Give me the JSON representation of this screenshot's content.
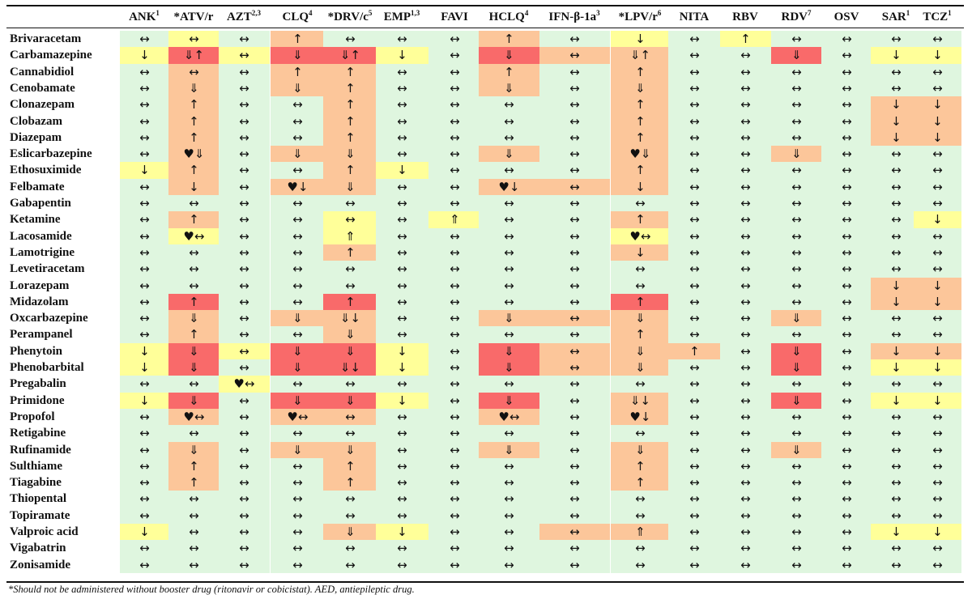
{
  "chart_data": {
    "type": "table",
    "columns": [
      {
        "label": "ANK",
        "sup": "1"
      },
      {
        "label": "*ATV/r",
        "sup": ""
      },
      {
        "label": "AZT",
        "sup": "2,3"
      },
      {
        "label": "CLQ",
        "sup": "4"
      },
      {
        "label": "*DRV/c",
        "sup": "5"
      },
      {
        "label": "EMP",
        "sup": "1,3"
      },
      {
        "label": "FAVI",
        "sup": ""
      },
      {
        "label": "HCLQ",
        "sup": "4"
      },
      {
        "label": "IFN-β-1a",
        "sup": "3"
      },
      {
        "label": "*LPV/r",
        "sup": "6"
      },
      {
        "label": "NITA",
        "sup": ""
      },
      {
        "label": "RBV",
        "sup": ""
      },
      {
        "label": "RDV",
        "sup": "7"
      },
      {
        "label": "OSV",
        "sup": ""
      },
      {
        "label": "SAR",
        "sup": "1"
      },
      {
        "label": "TCZ",
        "sup": "1"
      }
    ],
    "legend_colors": {
      "G": "#dff6df",
      "Y": "#ffff99",
      "O": "#fcc69a",
      "R": "#f96a6a"
    },
    "rows": [
      {
        "drug": "Brivaracetam",
        "values": [
          "↔",
          "↔",
          "↔",
          "↑",
          "↔",
          "↔",
          "↔",
          "↑",
          "↔",
          "↓",
          "↔",
          "↑",
          "↔",
          "↔",
          "↔",
          "↔"
        ],
        "colors": "GYGOGGGOGYGYGGGG"
      },
      {
        "drug": "Carbamazepine",
        "values": [
          "↓",
          "⇓↑",
          "↔",
          "⇓",
          "⇓↑",
          "↓",
          "↔",
          "⇓",
          "↔",
          "⇓↑",
          "↔",
          "↔",
          "⇓",
          "↔",
          "↓",
          "↓"
        ],
        "colors": "YRYRRYGROOGGRGYY"
      },
      {
        "drug": "Cannabidiol",
        "values": [
          "↔",
          "↔",
          "↔",
          "↑",
          "↑",
          "↔",
          "↔",
          "↑",
          "↔",
          "↑",
          "↔",
          "↔",
          "↔",
          "↔",
          "↔",
          "↔"
        ],
        "colors": "GOGOOGGOGOGGGGGG"
      },
      {
        "drug": "Cenobamate",
        "values": [
          "↔",
          "⇓",
          "↔",
          "⇓",
          "↑",
          "↔",
          "↔",
          "⇓",
          "↔",
          "⇓",
          "↔",
          "↔",
          "↔",
          "↔",
          "↔",
          "↔"
        ],
        "colors": "GOGOOGGOGOGGGGGG"
      },
      {
        "drug": "Clonazepam",
        "values": [
          "↔",
          "↑",
          "↔",
          "↔",
          "↑",
          "↔",
          "↔",
          "↔",
          "↔",
          "↑",
          "↔",
          "↔",
          "↔",
          "↔",
          "↓",
          "↓"
        ],
        "colors": "GOGGOGGGGOGGGGOO"
      },
      {
        "drug": "Clobazam",
        "values": [
          "↔",
          "↑",
          "↔",
          "↔",
          "↑",
          "↔",
          "↔",
          "↔",
          "↔",
          "↑",
          "↔",
          "↔",
          "↔",
          "↔",
          "↓",
          "↓"
        ],
        "colors": "GOGGOGGGGOGGGGOO"
      },
      {
        "drug": "Diazepam",
        "values": [
          "↔",
          "↑",
          "↔",
          "↔",
          "↑",
          "↔",
          "↔",
          "↔",
          "↔",
          "↑",
          "↔",
          "↔",
          "↔",
          "↔",
          "↓",
          "↓"
        ],
        "colors": "GOGGOGGGGOGGGGOO"
      },
      {
        "drug": "Eslicarbazepine",
        "values": [
          "↔",
          "♥⇓",
          "↔",
          "⇓",
          "⇓",
          "↔",
          "↔",
          "⇓",
          "↔",
          "♥⇓",
          "↔",
          "↔",
          "⇓",
          "↔",
          "↔",
          "↔"
        ],
        "colors": "GOGOOGGOGOGGOGGG"
      },
      {
        "drug": "Ethosuximide",
        "values": [
          "↓",
          "↑",
          "↔",
          "↔",
          "↑",
          "↓",
          "↔",
          "↔",
          "↔",
          "↑",
          "↔",
          "↔",
          "↔",
          "↔",
          "↔",
          "↔"
        ],
        "colors": "YOGGOYGGGOGGGGGG"
      },
      {
        "drug": "Felbamate",
        "values": [
          "↔",
          "↓",
          "↔",
          "♥↓",
          "⇓",
          "↔",
          "↔",
          "♥↓",
          "↔",
          "↓",
          "↔",
          "↔",
          "↔",
          "↔",
          "↔",
          "↔"
        ],
        "colors": "GOGOOGGOOOGGGGGG"
      },
      {
        "drug": "Gabapentin",
        "values": [
          "↔",
          "↔",
          "↔",
          "↔",
          "↔",
          "↔",
          "↔",
          "↔",
          "↔",
          "↔",
          "↔",
          "↔",
          "↔",
          "↔",
          "↔",
          "↔"
        ],
        "colors": "GGGGGGGGGGGGGGGG"
      },
      {
        "drug": "Ketamine",
        "values": [
          "↔",
          "↑",
          "↔",
          "↔",
          "↔",
          "↔",
          "⇑",
          "↔",
          "↔",
          "↑",
          "↔",
          "↔",
          "↔",
          "↔",
          "↔",
          "↓"
        ],
        "colors": "GOGGYGYGGOGGGGGY"
      },
      {
        "drug": "Lacosamide",
        "values": [
          "↔",
          "♥↔",
          "↔",
          "↔",
          "⇑",
          "↔",
          "↔",
          "↔",
          "↔",
          "♥↔",
          "↔",
          "↔",
          "↔",
          "↔",
          "↔",
          "↔"
        ],
        "colors": "GYGGYGGGGYGGGGGG"
      },
      {
        "drug": "Lamotrigine",
        "values": [
          "↔",
          "↔",
          "↔",
          "↔",
          "↑",
          "↔",
          "↔",
          "↔",
          "↔",
          "↓",
          "↔",
          "↔",
          "↔",
          "↔",
          "↔",
          "↔"
        ],
        "colors": "GGGGOGGGGOGGGGGG"
      },
      {
        "drug": "Levetiracetam",
        "values": [
          "↔",
          "↔",
          "↔",
          "↔",
          "↔",
          "↔",
          "↔",
          "↔",
          "↔",
          "↔",
          "↔",
          "↔",
          "↔",
          "↔",
          "↔",
          "↔"
        ],
        "colors": "GGGGGGGGGGGGGGGG"
      },
      {
        "drug": "Lorazepam",
        "values": [
          "↔",
          "↔",
          "↔",
          "↔",
          "↔",
          "↔",
          "↔",
          "↔",
          "↔",
          "↔",
          "↔",
          "↔",
          "↔",
          "↔",
          "↓",
          "↓"
        ],
        "colors": "GGGGGGGGGGGGGGOO"
      },
      {
        "drug": "Midazolam",
        "values": [
          "↔",
          "↑",
          "↔",
          "↔",
          "↑",
          "↔",
          "↔",
          "↔",
          "↔",
          "↑",
          "↔",
          "↔",
          "↔",
          "↔",
          "↓",
          "↓"
        ],
        "colors": "GRGGRGGGGRGGGGOO"
      },
      {
        "drug": "Oxcarbazepine",
        "values": [
          "↔",
          "⇓",
          "↔",
          "⇓",
          "⇓↓",
          "↔",
          "↔",
          "⇓",
          "↔",
          "⇓",
          "↔",
          "↔",
          "⇓",
          "↔",
          "↔",
          "↔"
        ],
        "colors": "GOGOOGGOOOGGOGGG"
      },
      {
        "drug": "Perampanel",
        "values": [
          "↔",
          "↑",
          "↔",
          "↔",
          "⇓",
          "↔",
          "↔",
          "↔",
          "↔",
          "↑",
          "↔",
          "↔",
          "↔",
          "↔",
          "↔",
          "↔"
        ],
        "colors": "GOGGOGGGGOGGGGGG"
      },
      {
        "drug": "Phenytoin",
        "values": [
          "↓",
          "⇓",
          "↔",
          "⇓",
          "⇓",
          "↓",
          "↔",
          "⇓",
          "↔",
          "⇓",
          "↑",
          "↔",
          "⇓",
          "↔",
          "↓",
          "↓"
        ],
        "colors": "YRYRRYGROOOGRGOO"
      },
      {
        "drug": "Phenobarbital",
        "values": [
          "↓",
          "⇓",
          "↔",
          "⇓",
          "⇓↓",
          "↓",
          "↔",
          "⇓",
          "↔",
          "⇓",
          "↔",
          "↔",
          "⇓",
          "↔",
          "↓",
          "↓"
        ],
        "colors": "YRGRRYGROOGGRGYY"
      },
      {
        "drug": "Pregabalin",
        "values": [
          "↔",
          "↔",
          "♥↔",
          "↔",
          "↔",
          "↔",
          "↔",
          "↔",
          "↔",
          "↔",
          "↔",
          "↔",
          "↔",
          "↔",
          "↔",
          "↔"
        ],
        "colors": "GGYGGGGGGGGGGGGG"
      },
      {
        "drug": "Primidone",
        "values": [
          "↓",
          "⇓",
          "↔",
          "⇓",
          "⇓",
          "↓",
          "↔",
          "⇓",
          "↔",
          "⇓↓",
          "↔",
          "↔",
          "⇓",
          "↔",
          "↓",
          "↓"
        ],
        "colors": "YRGRRYGRGOGGRGYY"
      },
      {
        "drug": "Propofol",
        "values": [
          "↔",
          "♥↔",
          "↔",
          "♥↔",
          "↔",
          "↔",
          "↔",
          "♥↔",
          "↔",
          "♥↓",
          "↔",
          "↔",
          "↔",
          "↔",
          "↔",
          "↔"
        ],
        "colors": "GOGOOGGOGOGGGGGG"
      },
      {
        "drug": "Retigabine",
        "values": [
          "↔",
          "↔",
          "↔",
          "↔",
          "↔",
          "↔",
          "↔",
          "↔",
          "↔",
          "↔",
          "↔",
          "↔",
          "↔",
          "↔",
          "↔",
          "↔"
        ],
        "colors": "GGGGGGGGGGGGGGGG"
      },
      {
        "drug": "Rufinamide",
        "values": [
          "↔",
          "⇓",
          "↔",
          "⇓",
          "⇓",
          "↔",
          "↔",
          "⇓",
          "↔",
          "⇓",
          "↔",
          "↔",
          "⇓",
          "↔",
          "↔",
          "↔"
        ],
        "colors": "GOGOOGGOGOGGOGGG"
      },
      {
        "drug": "Sulthiame",
        "values": [
          "↔",
          "↑",
          "↔",
          "↔",
          "↑",
          "↔",
          "↔",
          "↔",
          "↔",
          "↑",
          "↔",
          "↔",
          "↔",
          "↔",
          "↔",
          "↔"
        ],
        "colors": "GOGGOGGGGOGGGGGG"
      },
      {
        "drug": "Tiagabine",
        "values": [
          "↔",
          "↑",
          "↔",
          "↔",
          "↑",
          "↔",
          "↔",
          "↔",
          "↔",
          "↑",
          "↔",
          "↔",
          "↔",
          "↔",
          "↔",
          "↔"
        ],
        "colors": "GOGGOGGGGOGGGGGG"
      },
      {
        "drug": "Thiopental",
        "values": [
          "↔",
          "↔",
          "↔",
          "↔",
          "↔",
          "↔",
          "↔",
          "↔",
          "↔",
          "↔",
          "↔",
          "↔",
          "↔",
          "↔",
          "↔",
          "↔"
        ],
        "colors": "GGGGGGGGGGGGGGGG"
      },
      {
        "drug": "Topiramate",
        "values": [
          "↔",
          "↔",
          "↔",
          "↔",
          "↔",
          "↔",
          "↔",
          "↔",
          "↔",
          "↔",
          "↔",
          "↔",
          "↔",
          "↔",
          "↔",
          "↔"
        ],
        "colors": "GGGGGGGGGGGGGGGG"
      },
      {
        "drug": "Valproic acid",
        "values": [
          "↓",
          "↔",
          "↔",
          "↔",
          "⇓",
          "↓",
          "↔",
          "↔",
          "↔",
          "⇑",
          "↔",
          "↔",
          "↔",
          "↔",
          "↓",
          "↓"
        ],
        "colors": "YGGGOYGGOOGGGGYY"
      },
      {
        "drug": "Vigabatrin",
        "values": [
          "↔",
          "↔",
          "↔",
          "↔",
          "↔",
          "↔",
          "↔",
          "↔",
          "↔",
          "↔",
          "↔",
          "↔",
          "↔",
          "↔",
          "↔",
          "↔"
        ],
        "colors": "GGGGGGGGGGGGGGGG"
      },
      {
        "drug": "Zonisamide",
        "values": [
          "↔",
          "↔",
          "↔",
          "↔",
          "↔",
          "↔",
          "↔",
          "↔",
          "↔",
          "↔",
          "↔",
          "↔",
          "↔",
          "↔",
          "↔",
          "↔"
        ],
        "colors": "GGGGGGGGGGGGGGGG"
      }
    ],
    "footnote": "*Should not be administered without booster drug (ritonavir or cobicistat). AED, antiepileptic drug."
  }
}
